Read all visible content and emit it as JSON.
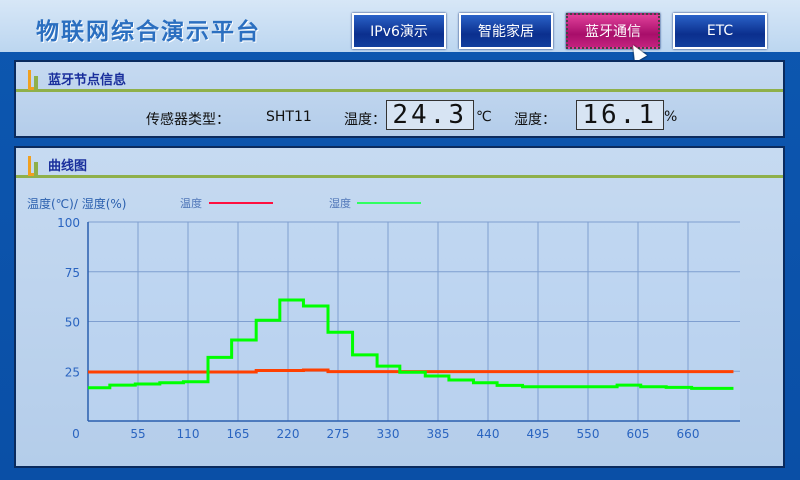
{
  "app": {
    "title": "物联网综合演示平台"
  },
  "nav": [
    {
      "label": "IPv6演示",
      "active": false
    },
    {
      "label": "智能家居",
      "active": false
    },
    {
      "label": "蓝牙通信",
      "active": true
    },
    {
      "label": "ETC",
      "active": false
    }
  ],
  "node_panel": {
    "title": "蓝牙节点信息",
    "sensor_type_label": "传感器类型：",
    "sensor_type": "SHT11",
    "temp_label": "温度：",
    "temp_value": "24.3",
    "temp_unit": "℃",
    "hum_label": "湿度：",
    "hum_value": "16.1",
    "hum_unit": "%"
  },
  "chart_panel": {
    "title": "曲线图"
  },
  "colors": {
    "accent": "#c3227e",
    "temp": "#ff4000",
    "humidity": "#00ff00",
    "nav": "#0b2f8e"
  },
  "chart_data": {
    "type": "line",
    "ylabel": "温度(℃)/ 湿度(%)",
    "xlim": [
      0,
      715
    ],
    "ylim": [
      0,
      100
    ],
    "xticks": [
      0,
      55,
      110,
      165,
      220,
      275,
      330,
      385,
      440,
      495,
      550,
      605,
      660
    ],
    "yticks": [
      0,
      25,
      50,
      75,
      100
    ],
    "grid": true,
    "legend_position": "top",
    "series": [
      {
        "name": "温度",
        "color": "#ff4000",
        "step": true,
        "points": [
          [
            0,
            24.6
          ],
          [
            158,
            24.6
          ],
          [
            185,
            25.4
          ],
          [
            237,
            25.6
          ],
          [
            264,
            24.8
          ],
          [
            710,
            24.8
          ]
        ]
      },
      {
        "name": "湿度",
        "color": "#00ff00",
        "step": true,
        "points": [
          [
            0,
            16.7
          ],
          [
            24,
            18
          ],
          [
            52,
            18.6
          ],
          [
            79,
            19.2
          ],
          [
            105,
            19.7
          ],
          [
            132,
            32
          ],
          [
            158,
            40.7
          ],
          [
            185,
            50.6
          ],
          [
            211,
            60.8
          ],
          [
            237,
            57.8
          ],
          [
            264,
            44.6
          ],
          [
            291,
            33.2
          ],
          [
            318,
            27.6
          ],
          [
            343,
            24.5
          ],
          [
            371,
            22.6
          ],
          [
            397,
            20.6
          ],
          [
            424,
            19.2
          ],
          [
            450,
            17.9
          ],
          [
            478,
            17.2
          ],
          [
            582,
            18
          ],
          [
            608,
            17.2
          ],
          [
            636,
            16.9
          ],
          [
            664,
            16.4
          ],
          [
            710,
            16.4
          ]
        ]
      }
    ]
  }
}
